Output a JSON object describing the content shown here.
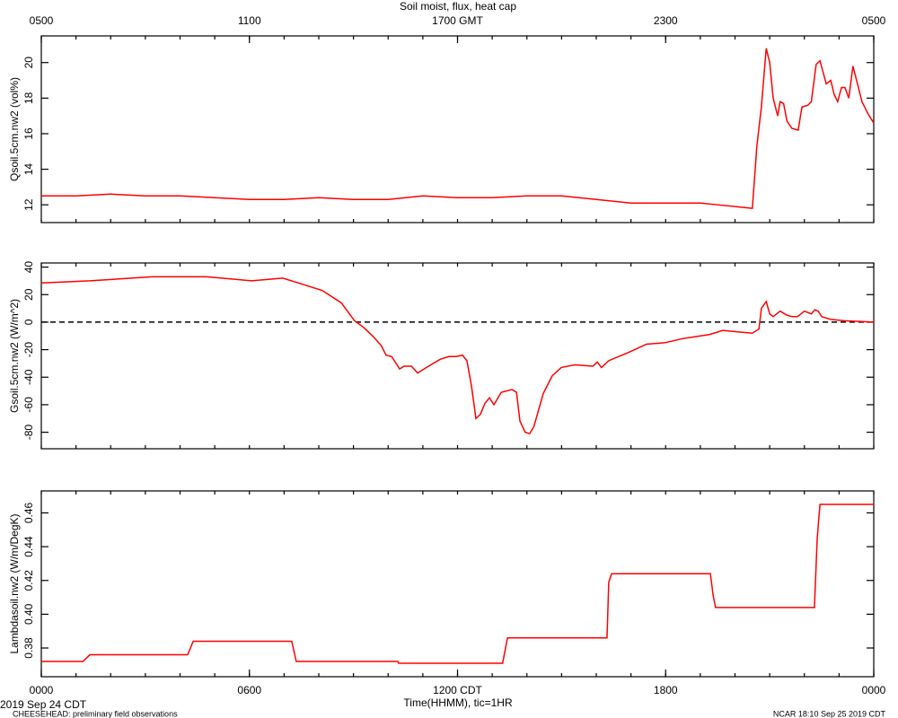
{
  "title": "Soil moist, flux, heat cap",
  "x_label": "Time(HHMM), tic=1HR",
  "date_label": "2019 Sep 24 CDT",
  "project_note": "CHEESEHEAD: preliminary field observations",
  "credit": "NCAR 18:10 Sep 25 2019 CDT",
  "chart_data": [
    {
      "type": "line",
      "y_label": "Qsoil.5cm.nw2 (vol%)",
      "xlim": [
        0,
        24
      ],
      "x2ticks": [
        {
          "value": 0,
          "label": "0500"
        },
        {
          "value": 6,
          "label": "1100"
        },
        {
          "value": 12,
          "label": "1700 GMT"
        },
        {
          "value": 18,
          "label": "2300"
        },
        {
          "value": 24,
          "label": "0500"
        }
      ],
      "ylim": [
        11,
        21.5
      ],
      "yticks": [
        12,
        14,
        16,
        18,
        20
      ],
      "x": [
        0,
        1,
        2,
        3,
        4,
        5,
        6,
        7,
        8,
        9,
        10,
        11,
        12,
        13,
        14,
        15,
        15.5,
        16,
        17,
        18,
        19,
        19.5,
        20,
        20.5,
        20.63,
        20.76,
        20.9,
        21,
        21.1,
        21.23,
        21.3,
        21.4,
        21.5,
        21.64,
        21.82,
        21.93,
        22.1,
        22.2,
        22.34,
        22.45,
        22.63,
        22.76,
        22.86,
        22.96,
        23.07,
        23.17,
        23.28,
        23.4,
        23.53,
        23.66,
        23.84,
        24
      ],
      "series": [
        {
          "name": "Qsoil.5cm.nw2",
          "color": "#ff0000",
          "values": [
            12.5,
            12.5,
            12.6,
            12.5,
            12.5,
            12.4,
            12.3,
            12.3,
            12.4,
            12.3,
            12.3,
            12.5,
            12.4,
            12.4,
            12.5,
            12.5,
            12.4,
            12.3,
            12.1,
            12.1,
            12.1,
            12,
            11.9,
            11.8,
            15.3,
            17.5,
            20.8,
            20,
            18,
            17,
            17.8,
            17.7,
            16.7,
            16.3,
            16.2,
            17.5,
            17.6,
            17.8,
            19.9,
            20.1,
            18.8,
            19,
            18.2,
            17.8,
            18.6,
            18.6,
            18,
            19.8,
            18.8,
            17.8,
            17.1,
            16.6
          ]
        }
      ]
    },
    {
      "type": "line",
      "y_label": "Gsoil.5cm.nw2 (W/m^2)",
      "xlim": [
        0,
        24
      ],
      "ylim": [
        -92,
        43
      ],
      "yticks": [
        40,
        20,
        0,
        -20,
        -40,
        -60,
        -80
      ],
      "reference_line": 0,
      "x": [
        0,
        1.4,
        3.2,
        4.76,
        6.06,
        6.96,
        7.6,
        8.1,
        8.65,
        9.03,
        9.3,
        9.55,
        9.8,
        9.94,
        10.1,
        10.33,
        10.46,
        10.67,
        10.85,
        11.1,
        11.5,
        11.75,
        11.96,
        12.14,
        12.27,
        12.4,
        12.53,
        12.66,
        12.79,
        12.92,
        13.05,
        13.26,
        13.57,
        13.7,
        13.8,
        13.95,
        14.08,
        14.2,
        14.47,
        14.73,
        14.99,
        15.38,
        15.9,
        16.03,
        16.15,
        16.36,
        16.93,
        17.45,
        17.97,
        18.49,
        19.26,
        19.65,
        20.04,
        20.5,
        20.69,
        20.76,
        20.9,
        21,
        21.1,
        21.3,
        21.5,
        21.65,
        21.8,
        22,
        22.2,
        22.3,
        22.4,
        22.5,
        22.76,
        23.15,
        24
      ],
      "series": [
        {
          "name": "Gsoil.5cm.nw2",
          "color": "#ff0000",
          "values": [
            28.5,
            30,
            33,
            33,
            30,
            32,
            27,
            23,
            14,
            1,
            -4,
            -10,
            -17,
            -24,
            -25,
            -34,
            -32,
            -32,
            -37,
            -33,
            -27,
            -25,
            -25,
            -24,
            -28,
            -46,
            -70,
            -67,
            -59,
            -55,
            -60,
            -51,
            -49,
            -51,
            -72,
            -80,
            -81,
            -76,
            -52,
            -39,
            -33,
            -31,
            -32,
            -29,
            -33,
            -28,
            -22,
            -16,
            -15,
            -12,
            -9,
            -6,
            -7,
            -8,
            -5,
            10,
            15,
            6,
            4,
            8,
            5,
            4,
            4,
            8,
            6,
            9,
            8,
            4,
            2,
            1,
            0
          ]
        }
      ]
    },
    {
      "type": "line",
      "y_label": "Lambdasoil.nw2 (W/m/DegK)",
      "xlim": [
        0,
        24
      ],
      "ylim": [
        0.363,
        0.473
      ],
      "yticks": [
        0.38,
        {
          "value": 0.4,
          "label": "0.40"
        },
        0.42,
        0.44,
        0.46
      ],
      "xticks": [
        {
          "value": 0,
          "label": "0000"
        },
        {
          "value": 6,
          "label": "0600"
        },
        {
          "value": 12,
          "label": "1200 CDT"
        },
        {
          "value": 18,
          "label": "1800"
        },
        {
          "value": 24,
          "label": "0000"
        }
      ],
      "x": [
        0,
        1.2,
        1.4,
        4.22,
        4.38,
        7.22,
        7.35,
        10.28,
        10.3,
        13.3,
        13.44,
        16.31,
        16.36,
        16.44,
        19.29,
        19.37,
        19.44,
        22.29,
        22.37,
        22.45,
        24
      ],
      "series": [
        {
          "name": "Lambdasoil.nw2",
          "color": "#ff0000",
          "values": [
            0.372,
            0.372,
            0.376,
            0.376,
            0.384,
            0.384,
            0.372,
            0.372,
            0.371,
            0.371,
            0.386,
            0.386,
            0.419,
            0.424,
            0.424,
            0.411,
            0.404,
            0.404,
            0.445,
            0.465,
            0.465
          ]
        }
      ]
    }
  ]
}
